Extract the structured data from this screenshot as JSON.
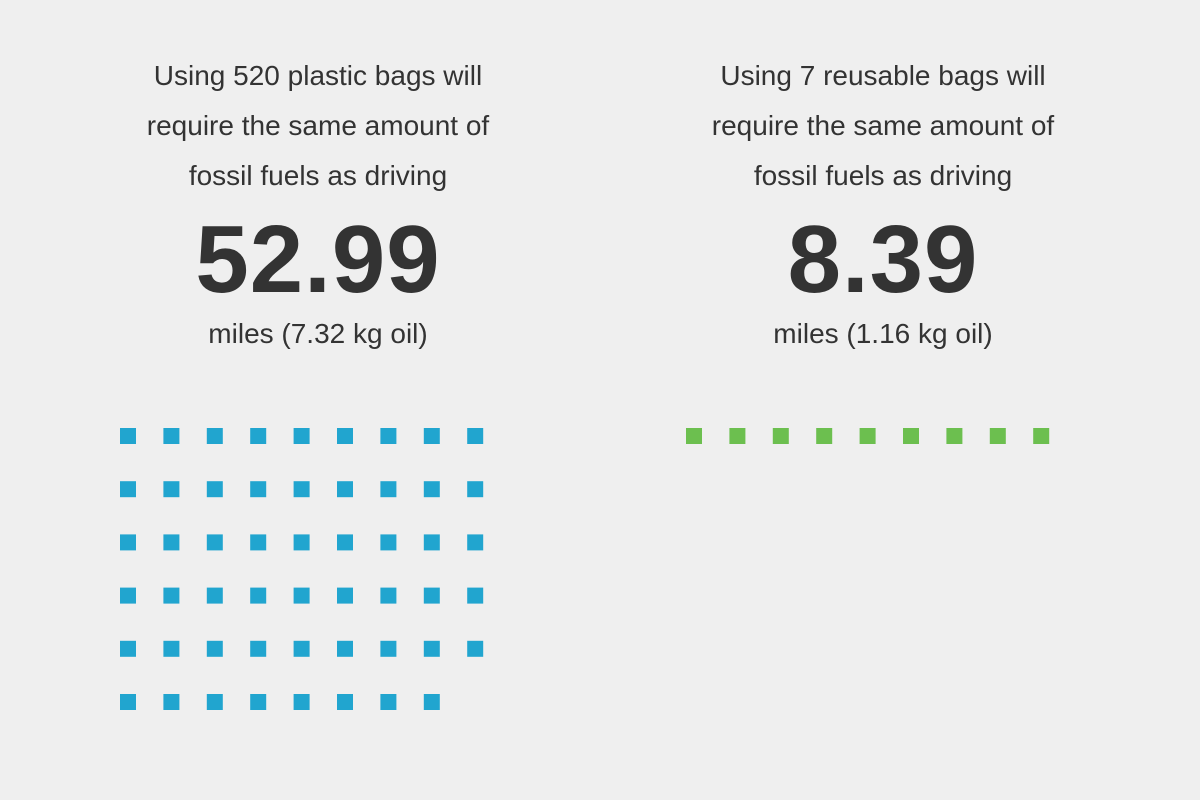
{
  "chart_data": [
    {
      "type": "pictogram",
      "caption_lines": [
        "Using 520 plastic bags will",
        "require the same amount of",
        "fossil fuels as driving"
      ],
      "value_label": "52.99",
      "unit_label": "miles (7.32 kg oil)",
      "value": 52.99,
      "icon_count": 53,
      "columns": 9,
      "color": "#21a5cf"
    },
    {
      "type": "pictogram",
      "caption_lines": [
        "Using 7 reusable bags will",
        "require the same amount of",
        "fossil fuels as driving"
      ],
      "value_label": "8.39",
      "unit_label": "miles (1.16 kg oil)",
      "value": 8.39,
      "icon_count": 9,
      "columns": 9,
      "color": "#6cbf4f"
    }
  ],
  "colors": {
    "background": "#efefef",
    "text": "#333333"
  }
}
